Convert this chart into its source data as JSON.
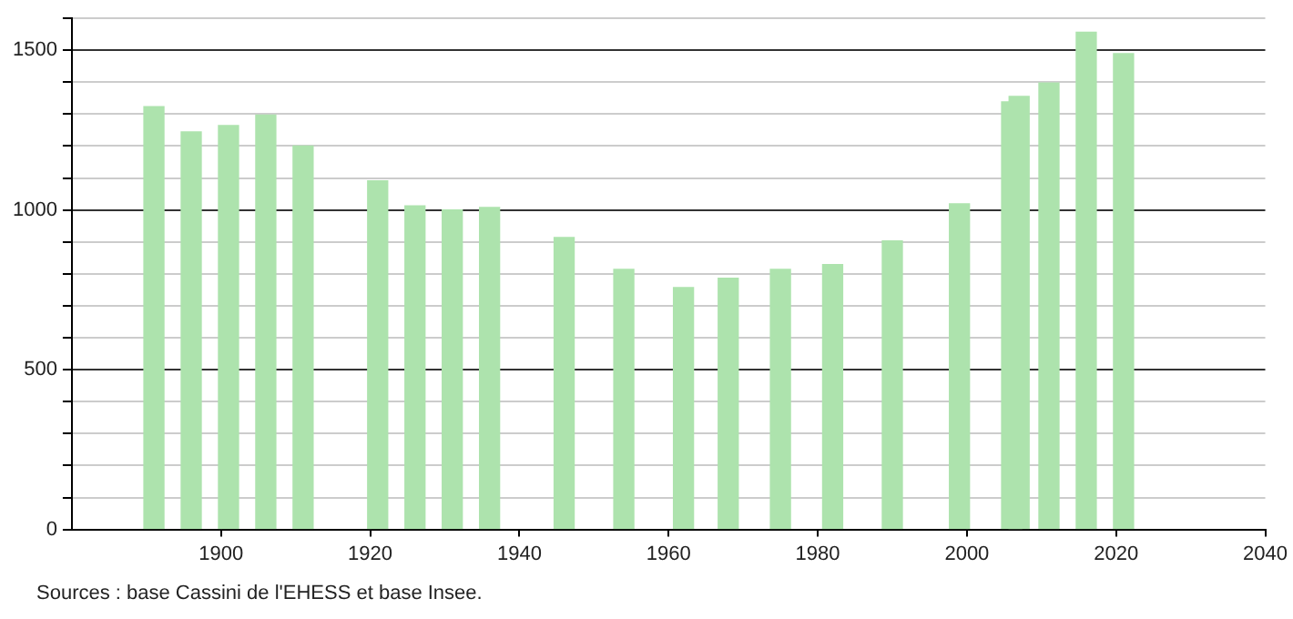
{
  "chart_data": {
    "type": "bar",
    "x": [
      1891,
      1896,
      1901,
      1906,
      1911,
      1921,
      1926,
      1931,
      1936,
      1946,
      1954,
      1962,
      1968,
      1975,
      1982,
      1990,
      1999,
      2006,
      2007,
      2011,
      2016,
      2021
    ],
    "values": [
      1323,
      1244,
      1264,
      1297,
      1200,
      1091,
      1013,
      1000,
      1008,
      914,
      814,
      757,
      786,
      814,
      829,
      903,
      1019,
      1338,
      1355,
      1397,
      1556,
      1489
    ],
    "color": "#ade3ad",
    "xlim": [
      1880,
      2040
    ],
    "xticks": [
      1900,
      1920,
      1940,
      1960,
      1980,
      2000,
      2020,
      2040
    ],
    "ylim": [
      0,
      1600
    ],
    "yticks": [
      0,
      {
        "value": 100,
        "label": null
      },
      {
        "value": 200,
        "label": null
      },
      {
        "value": 300,
        "label": null
      },
      {
        "value": 400,
        "label": null
      },
      500,
      {
        "value": 600,
        "label": null
      },
      {
        "value": 700,
        "label": null
      },
      {
        "value": 800,
        "label": null
      },
      {
        "value": 900,
        "label": null
      },
      1000,
      {
        "value": 1100,
        "label": null
      },
      {
        "value": 1200,
        "label": null
      },
      {
        "value": 1300,
        "label": null
      },
      {
        "value": 1400,
        "label": null
      },
      1500,
      {
        "value": 1600,
        "label": null
      }
    ],
    "grid": "y",
    "annotations": [
      "Sources : base Cassini de l'EHESS et base Insee."
    ]
  }
}
